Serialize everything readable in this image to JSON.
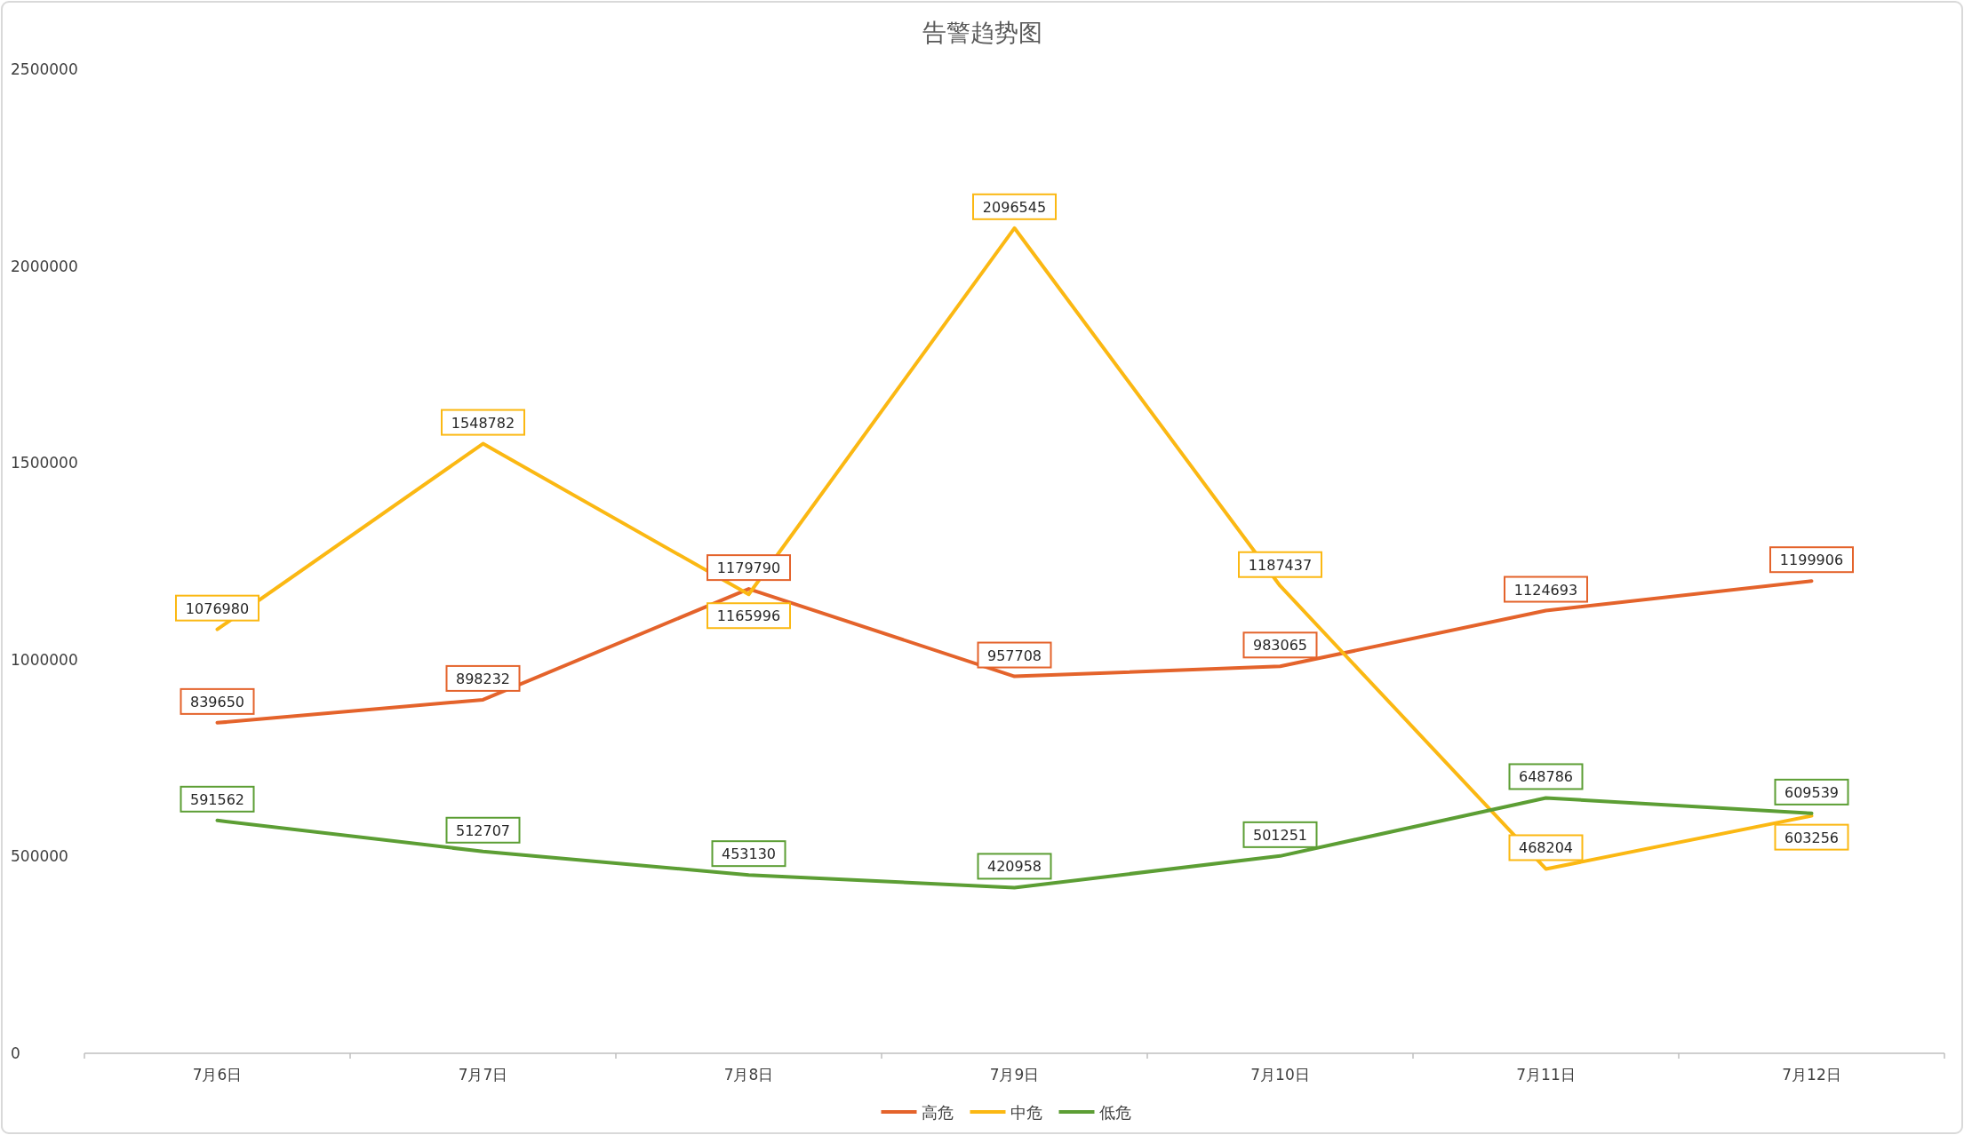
{
  "chart_data": {
    "type": "line",
    "title": "告警趋势图",
    "categories": [
      "7月6日",
      "7月7日",
      "7月8日",
      "7月9日",
      "7月10日",
      "7月11日",
      "7月12日"
    ],
    "series": [
      {
        "name": "高危",
        "color": "#e4632b",
        "values": [
          839650,
          898232,
          1179790,
          957708,
          983065,
          1124693,
          1199906
        ]
      },
      {
        "name": "中危",
        "color": "#fbb813",
        "values": [
          1076980,
          1548782,
          1165996,
          2096545,
          1187437,
          468204,
          603256
        ]
      },
      {
        "name": "低危",
        "color": "#5c9e34",
        "values": [
          591562,
          512707,
          453130,
          420958,
          501251,
          648786,
          609539
        ]
      }
    ],
    "ylim": [
      0,
      2500000
    ],
    "yticks": [
      0,
      500000,
      1000000,
      1500000,
      2000000,
      2500000
    ],
    "grid": false,
    "legend": "bottom",
    "marker": "none",
    "line_style": "solid",
    "data_labels": true
  }
}
